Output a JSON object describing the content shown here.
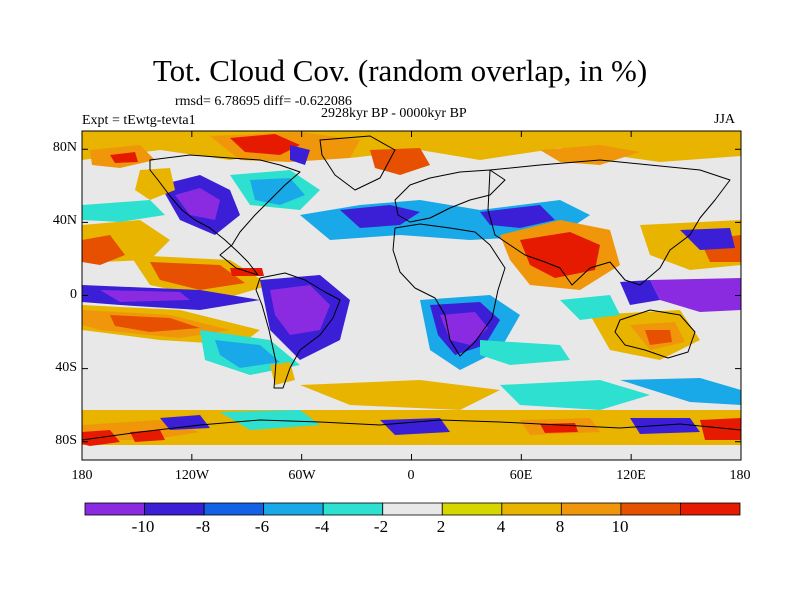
{
  "header": {
    "title": "Tot. Cloud Cov. (random overlap, in %)",
    "stats": "rmsd= 6.78695 diff= -0.622086",
    "period": "2928kyr BP - 0000kyr BP",
    "experiment": "Expt = tEwtg-tevta1",
    "season": "JJA"
  },
  "map": {
    "projection": "cylindrical-equidistant",
    "lat_range": [
      -90,
      90
    ],
    "lon_range": [
      -180,
      180
    ],
    "lat_ticks": [
      {
        "value": 80,
        "label": "80N"
      },
      {
        "value": 40,
        "label": "40N"
      },
      {
        "value": 0,
        "label": "0"
      },
      {
        "value": -40,
        "label": "40S"
      },
      {
        "value": -80,
        "label": "80S"
      }
    ],
    "lon_ticks": [
      {
        "value": -180,
        "label": "180"
      },
      {
        "value": -120,
        "label": "120W"
      },
      {
        "value": -60,
        "label": "60W"
      },
      {
        "value": 0,
        "label": "0"
      },
      {
        "value": 60,
        "label": "60E"
      },
      {
        "value": 120,
        "label": "120E"
      },
      {
        "value": 180,
        "label": "180"
      }
    ],
    "background_color": "#e8e8e8",
    "coastline_color": "#000000"
  },
  "colorbar": {
    "colors": [
      "#8a2be2",
      "#3a1fd6",
      "#1460e6",
      "#19a8e8",
      "#2ee0d0",
      "#e8e8e8",
      "#d6d600",
      "#e8b400",
      "#f0960a",
      "#e65000",
      "#e61a00"
    ],
    "tick_labels": [
      "-10",
      "-8",
      "-6",
      "-4",
      "-2",
      "2",
      "4",
      "8",
      "10"
    ]
  }
}
